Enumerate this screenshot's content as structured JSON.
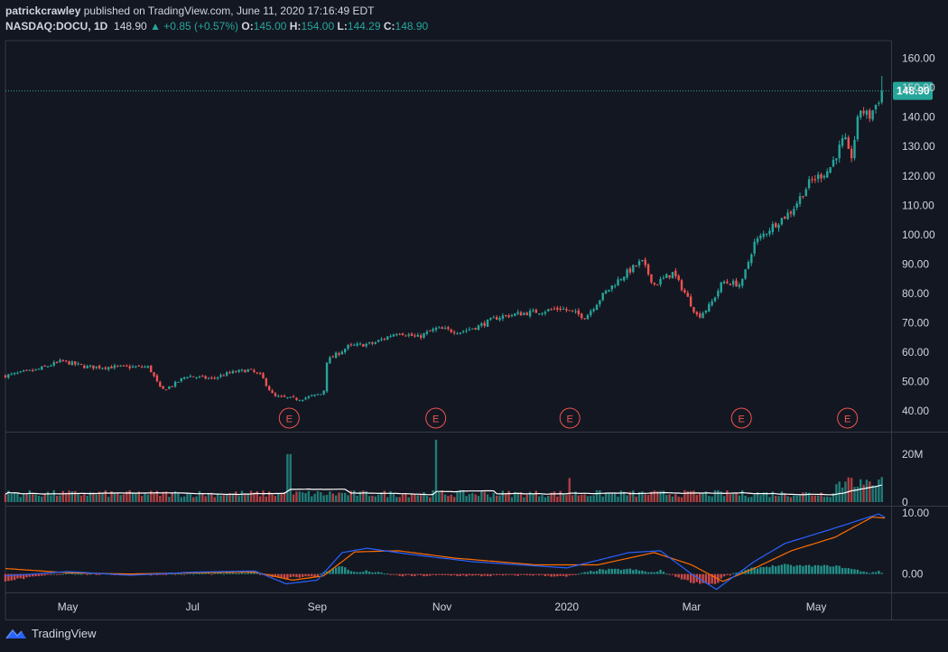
{
  "header": {
    "author": "patrickcrawley",
    "published_text": "published on TradingView.com, June 11, 2020 17:16:49 EDT",
    "symbol": "NASDAQ:DOCU, 1D",
    "last": "148.90",
    "change": "+0.85 (+0.57%)",
    "open_label": "O:",
    "open": "145.00",
    "high_label": "H:",
    "high": "154.00",
    "low_label": "L:",
    "low": "144.29",
    "close_label": "C:",
    "close": "148.90"
  },
  "footer": {
    "brand": "TradingView"
  },
  "colors": {
    "up": "#26a69a",
    "down": "#ef5350",
    "bg": "#131722",
    "text": "#d1d4dc",
    "macd": "#2962ff",
    "signal": "#ff6d00",
    "volume_ma": "#ffffff"
  },
  "chart_data": {
    "type": "candlestick",
    "price_panel": {
      "ylim": [
        33,
        166
      ],
      "yticks": [
        "160.00",
        "150.00",
        "140.00",
        "130.00",
        "120.00",
        "110.00",
        "100.00",
        "90.00",
        "80.00",
        "70.00",
        "60.00",
        "50.00",
        "40.00"
      ],
      "last_price_label": "148.90",
      "last_price": 148.9,
      "earnings_label": "E",
      "earnings_month_index": [
        4.55,
        6.9,
        9.05,
        11.8,
        13.5
      ],
      "approx_close_path": [
        [
          0,
          52
        ],
        [
          0.5,
          54
        ],
        [
          0.9,
          57
        ],
        [
          1.3,
          55
        ],
        [
          1.8,
          55
        ],
        [
          2.3,
          55
        ],
        [
          2.5,
          47
        ],
        [
          2.7,
          49
        ],
        [
          2.9,
          52
        ],
        [
          3.3,
          51
        ],
        [
          3.6,
          53
        ],
        [
          3.9,
          54
        ],
        [
          4.1,
          52
        ],
        [
          4.3,
          45
        ],
        [
          4.7,
          44
        ],
        [
          5.1,
          46
        ],
        [
          5.15,
          57
        ],
        [
          5.5,
          62
        ],
        [
          5.9,
          63
        ],
        [
          6.3,
          67
        ],
        [
          6.6,
          65
        ],
        [
          6.9,
          68
        ],
        [
          7.3,
          67
        ],
        [
          7.6,
          69
        ],
        [
          7.9,
          72
        ],
        [
          8.2,
          73
        ],
        [
          8.6,
          74
        ],
        [
          8.9,
          75
        ],
        [
          9.3,
          72
        ],
        [
          9.6,
          80
        ],
        [
          9.9,
          86
        ],
        [
          10.2,
          91
        ],
        [
          10.4,
          83
        ],
        [
          10.7,
          87
        ],
        [
          10.9,
          80
        ],
        [
          11.1,
          72
        ],
        [
          11.3,
          76
        ],
        [
          11.5,
          84
        ],
        [
          11.8,
          83
        ],
        [
          12.0,
          97
        ],
        [
          12.3,
          103
        ],
        [
          12.6,
          108
        ],
        [
          12.9,
          118
        ],
        [
          13.2,
          122
        ],
        [
          13.45,
          133
        ],
        [
          13.55,
          125
        ],
        [
          13.7,
          143
        ],
        [
          13.85,
          140
        ],
        [
          14.0,
          146
        ],
        [
          14.1,
          148.9
        ]
      ]
    },
    "volume_panel": {
      "ytick_labels": [
        "20M",
        "0"
      ],
      "yticks": [
        20,
        0
      ],
      "ylim": [
        0,
        29
      ],
      "spikes_month_index_value": [
        [
          4.55,
          20
        ],
        [
          6.9,
          26
        ],
        [
          9.05,
          10
        ]
      ]
    },
    "macd_panel": {
      "ytick_labels": [
        "10.00",
        "0.00"
      ],
      "yticks": [
        10,
        0
      ],
      "ylim": [
        -3,
        11
      ],
      "macd_path": [
        [
          0,
          -0.3
        ],
        [
          1,
          0.4
        ],
        [
          2,
          -0.2
        ],
        [
          3,
          0.3
        ],
        [
          4,
          0.5
        ],
        [
          4.5,
          -1.6
        ],
        [
          5,
          -1
        ],
        [
          5.4,
          3.5
        ],
        [
          5.8,
          4.2
        ],
        [
          6.5,
          3.2
        ],
        [
          7.5,
          2
        ],
        [
          9,
          1
        ],
        [
          10,
          3.5
        ],
        [
          10.5,
          3.8
        ],
        [
          11,
          0
        ],
        [
          11.4,
          -2.5
        ],
        [
          12,
          2
        ],
        [
          12.5,
          5
        ],
        [
          13.3,
          7.5
        ],
        [
          14,
          9.8
        ],
        [
          14.15,
          9
        ]
      ],
      "signal_path": [
        [
          0,
          0.9
        ],
        [
          1,
          0.2
        ],
        [
          2,
          0
        ],
        [
          3,
          0.2
        ],
        [
          4,
          0.3
        ],
        [
          4.6,
          -1
        ],
        [
          5.1,
          -0.3
        ],
        [
          5.6,
          3.6
        ],
        [
          6.3,
          3.8
        ],
        [
          7.2,
          2.6
        ],
        [
          8.5,
          1.5
        ],
        [
          9.5,
          1.5
        ],
        [
          10.4,
          3.5
        ],
        [
          11,
          1.5
        ],
        [
          11.5,
          -1.2
        ],
        [
          12,
          0.9
        ],
        [
          12.6,
          3.8
        ],
        [
          13.3,
          6
        ],
        [
          13.9,
          9.3
        ],
        [
          14.15,
          9.1
        ]
      ]
    },
    "x_axis": {
      "tick_labels": [
        "May",
        "Jul",
        "Sep",
        "Nov",
        "2020",
        "Mar",
        "May"
      ],
      "tick_month_index": [
        1,
        3,
        5,
        7,
        9,
        11,
        13
      ]
    }
  }
}
